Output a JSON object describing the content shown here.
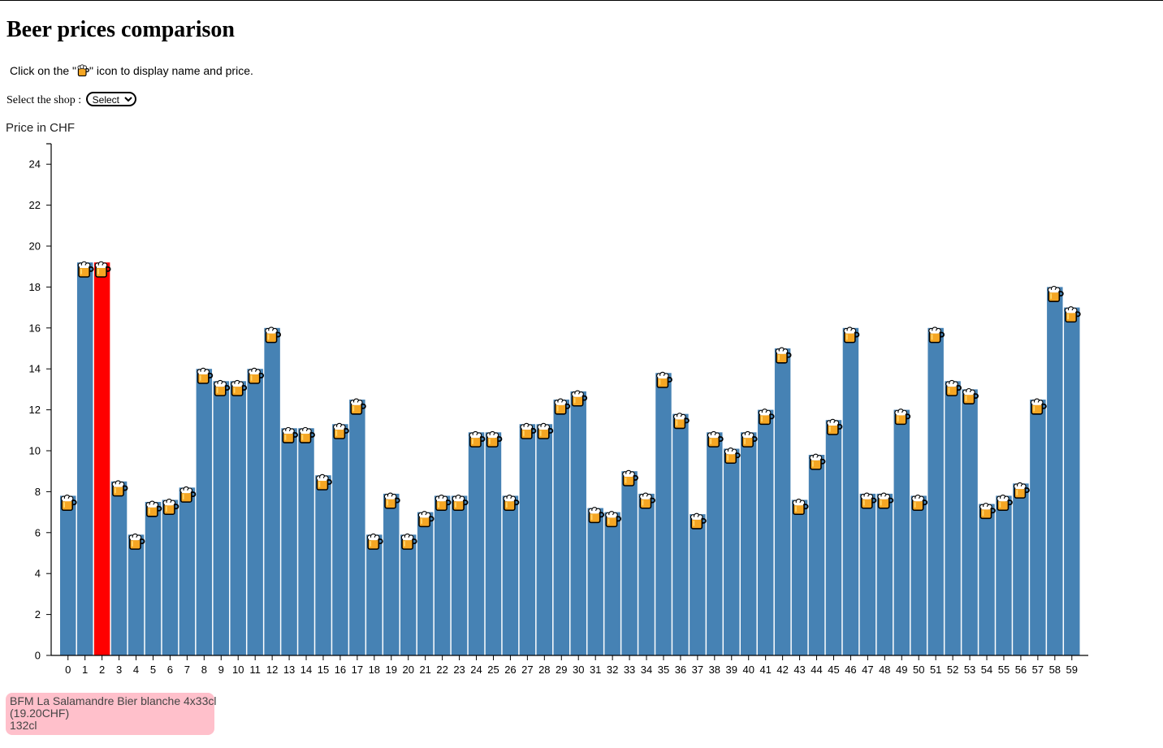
{
  "page": {
    "title": "Beer prices comparison",
    "instruction_prefix": "Click on the \"",
    "instruction_suffix": "\" icon to display name and price.",
    "instruction_icon": "beer-mug-icon",
    "shop_label": "Select the shop :",
    "shop_select": {
      "value": "Select",
      "options": [
        "Select"
      ]
    },
    "y_axis_label": "Price in CHF"
  },
  "chart_data": {
    "type": "bar",
    "title": "",
    "xlabel": "",
    "ylabel": "Price in CHF",
    "ylim": [
      0,
      25
    ],
    "y_ticks": [
      0,
      2,
      4,
      6,
      8,
      10,
      12,
      14,
      16,
      18,
      20,
      22,
      24
    ],
    "categories": [
      "0",
      "1",
      "2",
      "3",
      "4",
      "5",
      "6",
      "7",
      "8",
      "9",
      "10",
      "11",
      "12",
      "13",
      "14",
      "15",
      "16",
      "17",
      "18",
      "19",
      "20",
      "21",
      "22",
      "23",
      "24",
      "25",
      "26",
      "27",
      "28",
      "29",
      "30",
      "31",
      "32",
      "33",
      "34",
      "35",
      "36",
      "37",
      "38",
      "39",
      "40",
      "41",
      "42",
      "43",
      "44",
      "45",
      "46",
      "47",
      "48",
      "49",
      "50",
      "51",
      "52",
      "53",
      "54",
      "55",
      "56",
      "57",
      "58",
      "59"
    ],
    "values": [
      7.8,
      19.2,
      19.2,
      8.5,
      5.9,
      7.5,
      7.6,
      8.2,
      14.0,
      13.4,
      13.4,
      14.0,
      16.0,
      11.1,
      11.1,
      8.8,
      11.3,
      12.5,
      5.9,
      7.9,
      5.9,
      7.0,
      7.8,
      7.8,
      10.9,
      10.9,
      7.8,
      11.3,
      11.3,
      12.5,
      12.9,
      7.2,
      7.0,
      9.0,
      7.9,
      13.8,
      11.8,
      6.9,
      10.9,
      10.1,
      10.9,
      12.0,
      15.0,
      7.6,
      9.8,
      11.5,
      16.0,
      7.9,
      7.9,
      12.0,
      7.8,
      16.0,
      13.4,
      13.0,
      7.4,
      7.8,
      8.4,
      12.5,
      18.0,
      17.0
    ],
    "bar_color": "#4682b4",
    "highlight_color": "#ff0000",
    "highlighted_index": 2,
    "marker_icon": "beer-mug-icon",
    "grid": false,
    "legend": "none"
  },
  "tooltip": {
    "line1": "BFM La Salamandre Bier blanche 4x33cl",
    "line2": "(19.20CHF)",
    "line3": "132cl",
    "background": "#ffc0cb"
  }
}
